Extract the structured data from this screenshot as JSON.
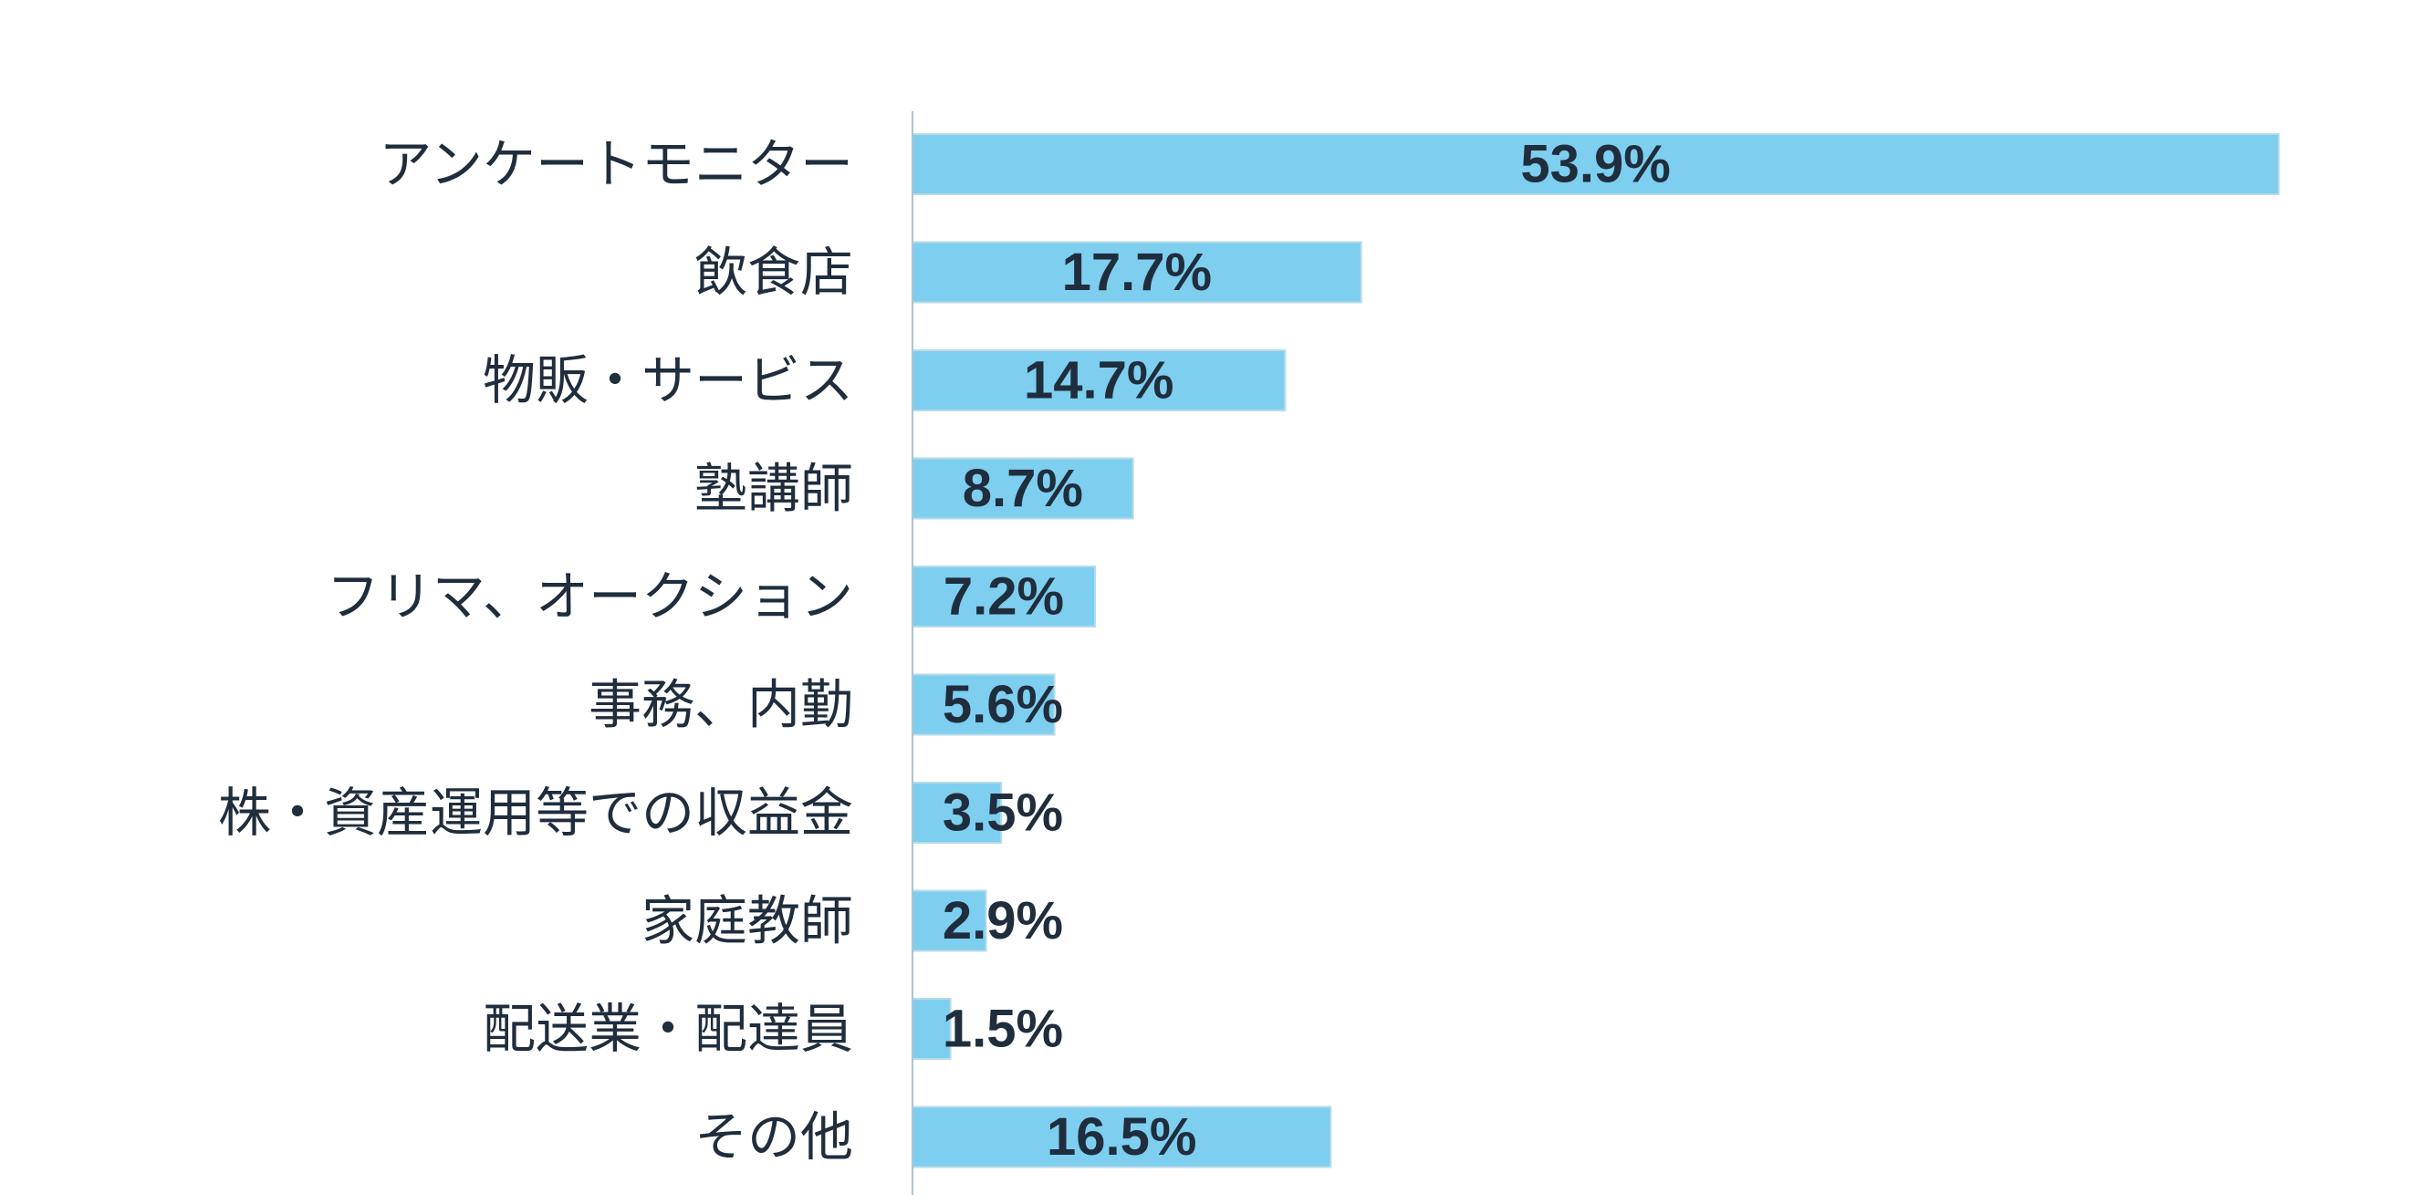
{
  "chart_data": {
    "type": "bar",
    "orientation": "horizontal",
    "title": "",
    "xlabel": "",
    "ylabel": "",
    "categories": [
      "アンケートモニター",
      "飲食店",
      "物販・サービス",
      "塾講師",
      "フリマ、オークション",
      "事務、内勤",
      "株・資産運用等での収益金",
      "家庭教師",
      "配送業・配達員",
      "その他"
    ],
    "values": [
      53.9,
      17.7,
      14.7,
      8.7,
      7.2,
      5.6,
      3.5,
      2.9,
      1.5,
      16.5
    ],
    "value_labels": [
      "53.9%",
      "17.7%",
      "14.7%",
      "8.7%",
      "7.2%",
      "5.6%",
      "3.5%",
      "2.9%",
      "1.5%",
      "16.5%"
    ],
    "unit": "%",
    "xlim": [
      0,
      60
    ],
    "grid": false,
    "legend": "none",
    "bar_color": "#7dceef",
    "axis_color": "#a9c7d6",
    "text_color": "#1f2d3d"
  }
}
